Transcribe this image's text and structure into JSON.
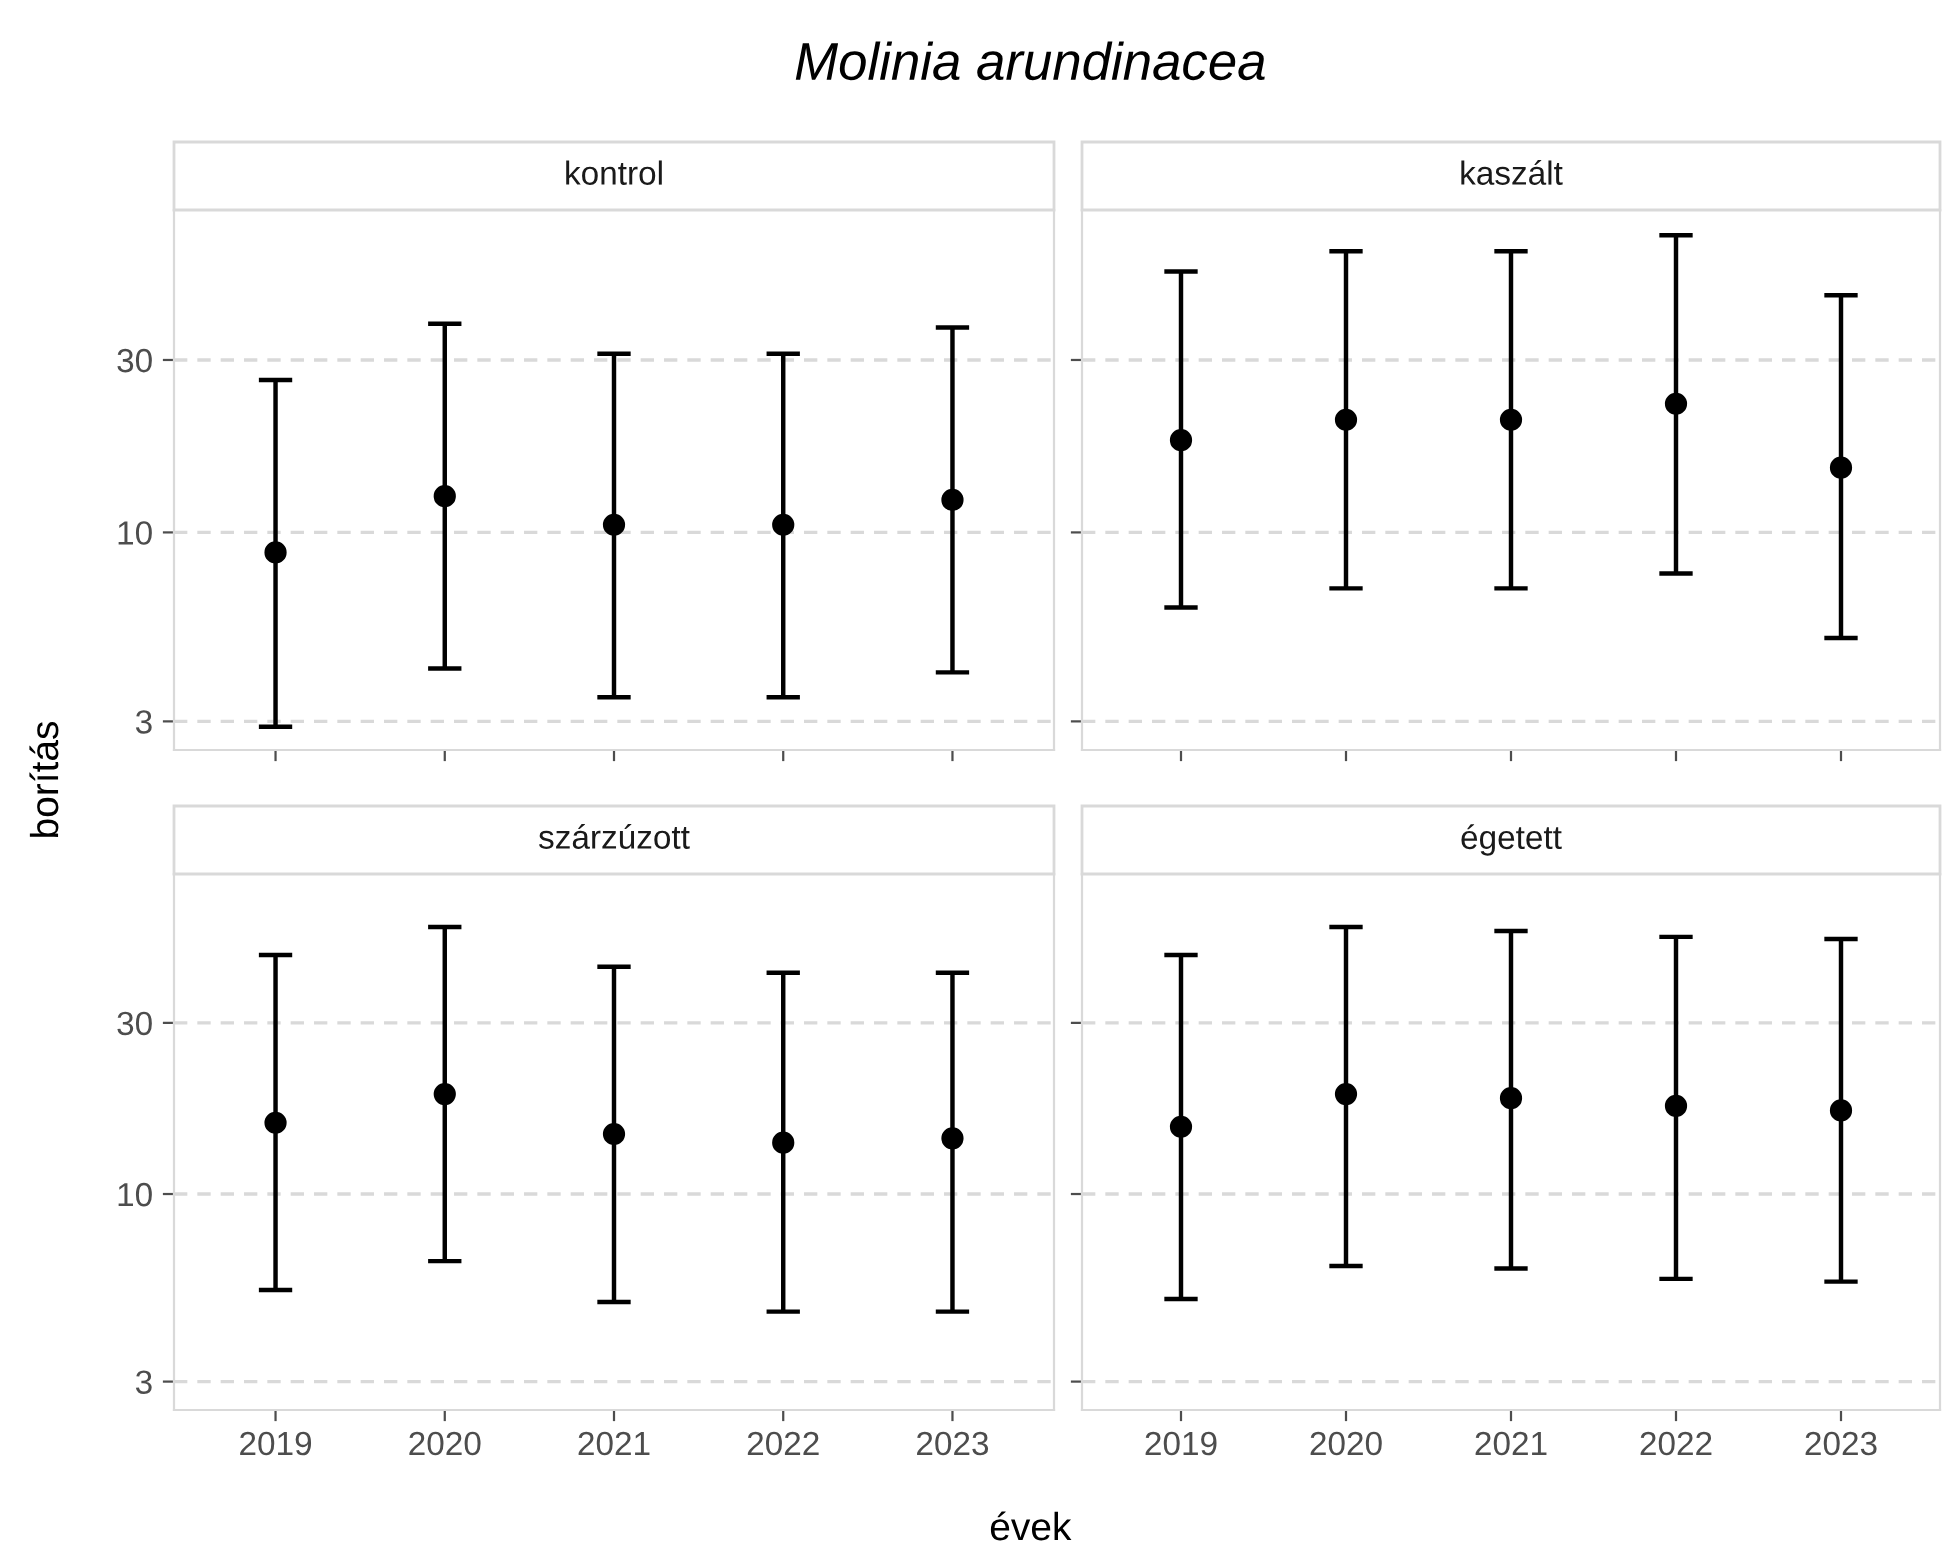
{
  "chart_data": [
    {
      "type": "scatter",
      "title": "kontrol",
      "annotations": [
        "Molinia arundinacea"
      ],
      "xlabel": "évek",
      "ylabel": "borítás",
      "categories": [
        "2019",
        "2020",
        "2021",
        "2022",
        "2023"
      ],
      "values": [
        8.8,
        12.6,
        10.5,
        10.5,
        12.3
      ],
      "errors": [
        [
          2.9,
          26.4
        ],
        [
          4.2,
          37.8
        ],
        [
          3.5,
          31.2
        ],
        [
          3.5,
          31.2
        ],
        [
          4.1,
          36.9
        ]
      ],
      "color": "#000000",
      "log": "y",
      "ylim": [
        2.5,
        78
      ],
      "yticks": [
        3,
        10,
        30
      ],
      "grid": "y",
      "marker": "circle",
      "tick_labels": "y"
    },
    {
      "type": "scatter",
      "title": "kaszált",
      "categories": [
        "2019",
        "2020",
        "2021",
        "2022",
        "2023"
      ],
      "values": [
        18,
        20.5,
        20.5,
        22.7,
        15.1
      ],
      "errors": [
        [
          6.2,
          52.7
        ],
        [
          7.0,
          60
        ],
        [
          7.0,
          60
        ],
        [
          7.7,
          66.4
        ],
        [
          5.1,
          45.3
        ]
      ],
      "color": "#000000",
      "log": "y",
      "ylim": [
        2.5,
        78
      ],
      "yticks": [
        3,
        10,
        30
      ],
      "grid": "y",
      "marker": "circle",
      "tick_labels": false
    },
    {
      "type": "scatter",
      "title": "szárzúzott",
      "categories": [
        "2019",
        "2020",
        "2021",
        "2022",
        "2023"
      ],
      "values": [
        15.8,
        19,
        14.7,
        13.9,
        14.3
      ],
      "errors": [
        [
          5.4,
          46.4
        ],
        [
          6.5,
          55.5
        ],
        [
          5.0,
          43
        ],
        [
          4.7,
          41.4
        ],
        [
          4.7,
          41.4
        ]
      ],
      "color": "#000000",
      "log": "y",
      "ylim": [
        2.5,
        78
      ],
      "yticks": [
        3,
        10,
        30
      ],
      "grid": "y",
      "marker": "circle"
    },
    {
      "type": "scatter",
      "title": "égetett",
      "categories": [
        "2019",
        "2020",
        "2021",
        "2022",
        "2023"
      ],
      "values": [
        15.4,
        19,
        18.5,
        17.6,
        17.1
      ],
      "errors": [
        [
          5.1,
          46.4
        ],
        [
          6.3,
          55.5
        ],
        [
          6.2,
          54.1
        ],
        [
          5.8,
          52.1
        ],
        [
          5.7,
          51.4
        ]
      ],
      "color": "#000000",
      "log": "y",
      "ylim": [
        2.5,
        78
      ],
      "yticks": [
        3,
        10,
        30
      ],
      "grid": "y",
      "marker": "circle",
      "tick_labels": "x"
    }
  ]
}
